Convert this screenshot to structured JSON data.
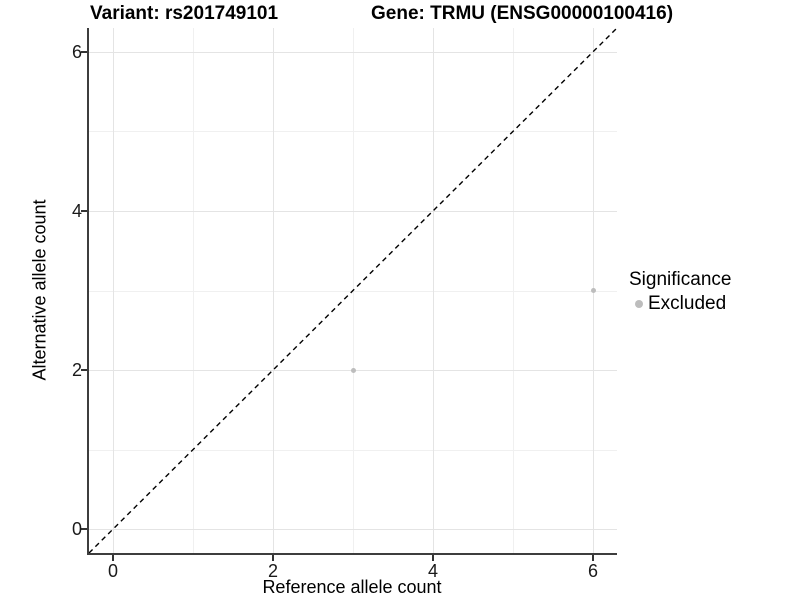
{
  "titles": {
    "left": "Variant: rs201749101",
    "right": "Gene: TRMU (ENSG00000100416)"
  },
  "chart_data": {
    "type": "scatter",
    "xlabel": "Reference allele count",
    "ylabel": "Alternative allele count",
    "xlim": [
      -0.3,
      6.3
    ],
    "ylim": [
      -0.3,
      6.3
    ],
    "x_ticks": [
      0,
      2,
      4,
      6
    ],
    "y_ticks": [
      0,
      2,
      4,
      6
    ],
    "x_minor_ticks": [
      1,
      3,
      5
    ],
    "y_minor_ticks": [
      1,
      3,
      5
    ],
    "grid": true,
    "points": [
      {
        "x": 3,
        "y": 2,
        "series": "Excluded"
      },
      {
        "x": 6,
        "y": 3,
        "series": "Excluded"
      }
    ],
    "reference_line": {
      "slope": 1,
      "intercept": 0,
      "style": "dashed",
      "color": "#000000"
    },
    "legend": {
      "position": "right",
      "title": "Significance",
      "items": [
        {
          "label": "Excluded",
          "color": "#bdbdbd"
        }
      ]
    },
    "point_color": "#bdbdbd"
  },
  "colors": {
    "axis_line": "#3d3d3d",
    "tick_mark": "#333333",
    "major_grid": "#e4e4e4",
    "minor_grid": "#f0f0f0",
    "background": "#ffffff"
  }
}
